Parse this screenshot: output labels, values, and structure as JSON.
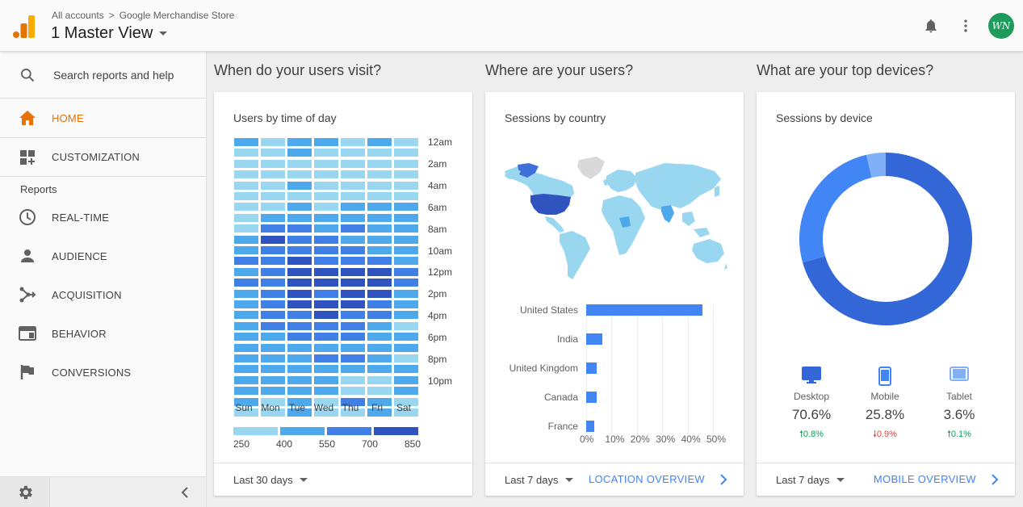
{
  "header": {
    "breadcrumb_1": "All accounts",
    "breadcrumb_sep": ">",
    "breadcrumb_2": "Google Merchandise Store",
    "view_title": "1 Master View",
    "avatar_text": "WN"
  },
  "sidebar": {
    "search_placeholder": "Search reports and help",
    "home": "HOME",
    "customization": "CUSTOMIZATION",
    "reports_label": "Reports",
    "reports": [
      {
        "label": "REAL-TIME",
        "icon": "clock-icon"
      },
      {
        "label": "AUDIENCE",
        "icon": "person-icon"
      },
      {
        "label": "ACQUISITION",
        "icon": "acquisition-icon"
      },
      {
        "label": "BEHAVIOR",
        "icon": "behavior-icon"
      },
      {
        "label": "CONVERSIONS",
        "icon": "flag-icon"
      }
    ]
  },
  "colors": {
    "accent": "#e8710a",
    "link": "#4285f4",
    "heat": [
      "#99d6f0",
      "#4ea8ec",
      "#3f7fe6",
      "#3054bf"
    ],
    "up": "#0f9d58",
    "down": "#db4437"
  },
  "sections": {
    "visit_title": "When do your users visit?",
    "where_title": "Where are your users?",
    "devices_title": "What are your top devices?"
  },
  "time_card": {
    "subtitle": "Users by time of day",
    "hours": [
      "12am",
      "2am",
      "4am",
      "6am",
      "8am",
      "10am",
      "12pm",
      "2pm",
      "4pm",
      "6pm",
      "8pm",
      "10pm"
    ],
    "days": [
      "Sun",
      "Mon",
      "Tue",
      "Wed",
      "Thu",
      "Fri",
      "Sat"
    ],
    "legend": [
      "250",
      "400",
      "550",
      "700",
      "850"
    ],
    "range": "Last 30 days"
  },
  "country_card": {
    "subtitle": "Sessions by country",
    "range": "Last 7 days",
    "link": "LOCATION OVERVIEW",
    "axis": [
      "0%",
      "10%",
      "20%",
      "30%",
      "40%",
      "50%"
    ]
  },
  "device_card": {
    "subtitle": "Sessions by device",
    "range": "Last 7 days",
    "link": "MOBILE OVERVIEW",
    "devices": [
      {
        "name": "Desktop",
        "pct": "70.6%",
        "change": "0.8%",
        "dir": "up"
      },
      {
        "name": "Mobile",
        "pct": "25.8%",
        "change": "0.9%",
        "dir": "down"
      },
      {
        "name": "Tablet",
        "pct": "3.6%",
        "change": "0.1%",
        "dir": "up"
      }
    ]
  },
  "chart_data": [
    {
      "type": "heatmap",
      "title": "Users by time of day",
      "x": [
        "Sun",
        "Mon",
        "Tue",
        "Wed",
        "Thu",
        "Fri",
        "Sat"
      ],
      "y_tick_labels": [
        "12am",
        "2am",
        "4am",
        "6am",
        "8am",
        "10am",
        "12pm",
        "2pm",
        "4pm",
        "6pm",
        "8pm",
        "10pm"
      ],
      "legend": [
        250,
        400,
        550,
        700,
        850
      ],
      "levels_by_row": [
        [
          1,
          0,
          1,
          1,
          0,
          1,
          0
        ],
        [
          0,
          0,
          1,
          0,
          0,
          0,
          0
        ],
        [
          0,
          0,
          0,
          0,
          0,
          0,
          0
        ],
        [
          0,
          0,
          0,
          0,
          0,
          0,
          0
        ],
        [
          0,
          0,
          1,
          0,
          0,
          0,
          0
        ],
        [
          0,
          0,
          0,
          0,
          0,
          0,
          0
        ],
        [
          0,
          0,
          1,
          0,
          1,
          1,
          1
        ],
        [
          0,
          1,
          1,
          1,
          1,
          1,
          1
        ],
        [
          0,
          2,
          2,
          1,
          2,
          1,
          1
        ],
        [
          1,
          3,
          2,
          2,
          1,
          1,
          1
        ],
        [
          1,
          2,
          2,
          2,
          2,
          1,
          1
        ],
        [
          2,
          2,
          3,
          2,
          2,
          2,
          1
        ],
        [
          1,
          2,
          3,
          3,
          3,
          3,
          2
        ],
        [
          2,
          2,
          3,
          3,
          3,
          3,
          2
        ],
        [
          1,
          2,
          3,
          2,
          3,
          3,
          1
        ],
        [
          1,
          2,
          3,
          3,
          3,
          2,
          1
        ],
        [
          1,
          2,
          2,
          3,
          2,
          2,
          1
        ],
        [
          1,
          2,
          2,
          2,
          2,
          1,
          0
        ],
        [
          1,
          1,
          2,
          2,
          2,
          1,
          1
        ],
        [
          1,
          1,
          1,
          1,
          1,
          1,
          1
        ],
        [
          1,
          1,
          1,
          2,
          2,
          1,
          0
        ],
        [
          1,
          1,
          1,
          1,
          1,
          1,
          1
        ],
        [
          1,
          1,
          1,
          1,
          0,
          0,
          1
        ],
        [
          1,
          1,
          1,
          1,
          0,
          0,
          1
        ],
        [
          1,
          0,
          1,
          0,
          2,
          1,
          0
        ],
        [
          0,
          0,
          1,
          0,
          0,
          1,
          0
        ]
      ]
    },
    {
      "type": "bar",
      "title": "Sessions by country",
      "categories": [
        "United States",
        "India",
        "United Kingdom",
        "Canada",
        "France"
      ],
      "values": [
        46,
        6.5,
        4.2,
        4,
        3.2
      ],
      "xlim": [
        0,
        50
      ]
    },
    {
      "type": "pie",
      "title": "Sessions by device",
      "categories": [
        "Desktop",
        "Mobile",
        "Tablet"
      ],
      "values": [
        70.6,
        25.8,
        3.6
      ],
      "colors": [
        "#3366d6",
        "#4285f4",
        "#7fb0f8"
      ]
    }
  ]
}
